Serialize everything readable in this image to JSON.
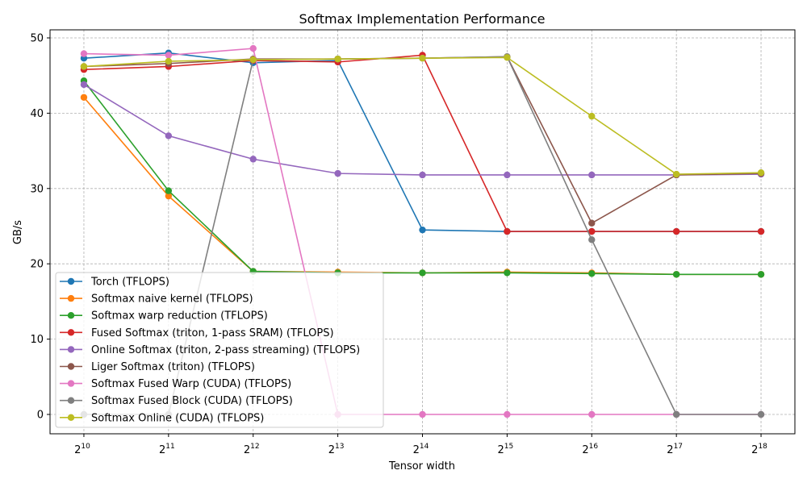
{
  "chart_data": {
    "type": "line",
    "title": "Softmax Implementation Performance",
    "xlabel": "Tensor width",
    "ylabel": "GB/s",
    "x_scale": "log2",
    "x": [
      1024,
      2048,
      4096,
      8192,
      16384,
      32768,
      65536,
      131072,
      262144
    ],
    "x_tick_labels": [
      {
        "base": "2",
        "exp": "10"
      },
      {
        "base": "2",
        "exp": "11"
      },
      {
        "base": "2",
        "exp": "12"
      },
      {
        "base": "2",
        "exp": "13"
      },
      {
        "base": "2",
        "exp": "14"
      },
      {
        "base": "2",
        "exp": "15"
      },
      {
        "base": "2",
        "exp": "16"
      },
      {
        "base": "2",
        "exp": "17"
      },
      {
        "base": "2",
        "exp": "18"
      }
    ],
    "xlim_log2": [
      9.6,
      18.4
    ],
    "ylim": [
      -2.57,
      51.07
    ],
    "y_ticks": [
      0,
      10,
      20,
      30,
      40,
      50
    ],
    "grid": true,
    "legend_position": "lower-left",
    "series": [
      {
        "name": "Torch (TFLOPS)",
        "color": "#1f77b4",
        "values": [
          47.3,
          48.0,
          46.7,
          47.0,
          24.5,
          24.3,
          24.3,
          24.3,
          24.3
        ]
      },
      {
        "name": "Softmax naive kernel (TFLOPS)",
        "color": "#ff7f0e",
        "values": [
          42.1,
          29.0,
          19.0,
          18.9,
          18.8,
          18.9,
          18.8,
          18.6,
          18.6
        ]
      },
      {
        "name": "Softmax warp reduction (TFLOPS)",
        "color": "#2ca02c",
        "values": [
          44.3,
          29.7,
          19.0,
          18.8,
          18.8,
          18.8,
          18.7,
          18.6,
          18.6
        ]
      },
      {
        "name": "Fused Softmax (triton, 1-pass SRAM) (TFLOPS)",
        "color": "#d62728",
        "values": [
          45.8,
          46.2,
          47.0,
          46.8,
          47.7,
          24.3,
          24.3,
          24.3,
          24.3
        ]
      },
      {
        "name": "Online Softmax (triton, 2-pass streaming) (TFLOPS)",
        "color": "#9467bd",
        "values": [
          43.8,
          37.0,
          33.9,
          32.0,
          31.8,
          31.8,
          31.8,
          31.8,
          31.9
        ]
      },
      {
        "name": "Liger Softmax (triton) (TFLOPS)",
        "color": "#8c564b",
        "values": [
          46.2,
          46.6,
          47.2,
          47.2,
          47.3,
          47.5,
          25.4,
          31.8,
          32.0
        ]
      },
      {
        "name": "Softmax Fused Warp (CUDA) (TFLOPS)",
        "color": "#e377c2",
        "values": [
          47.9,
          47.7,
          48.6,
          0,
          0,
          0,
          0,
          0,
          0
        ]
      },
      {
        "name": "Softmax Fused Block (CUDA) (TFLOPS)",
        "color": "#7f7f7f",
        "values": [
          0,
          0,
          47.1,
          47.2,
          47.3,
          47.5,
          23.2,
          0,
          0
        ]
      },
      {
        "name": "Softmax Online (CUDA) (TFLOPS)",
        "color": "#bcbd22",
        "values": [
          46.2,
          46.9,
          47.1,
          47.2,
          47.3,
          47.4,
          39.6,
          31.9,
          32.1
        ]
      }
    ]
  }
}
